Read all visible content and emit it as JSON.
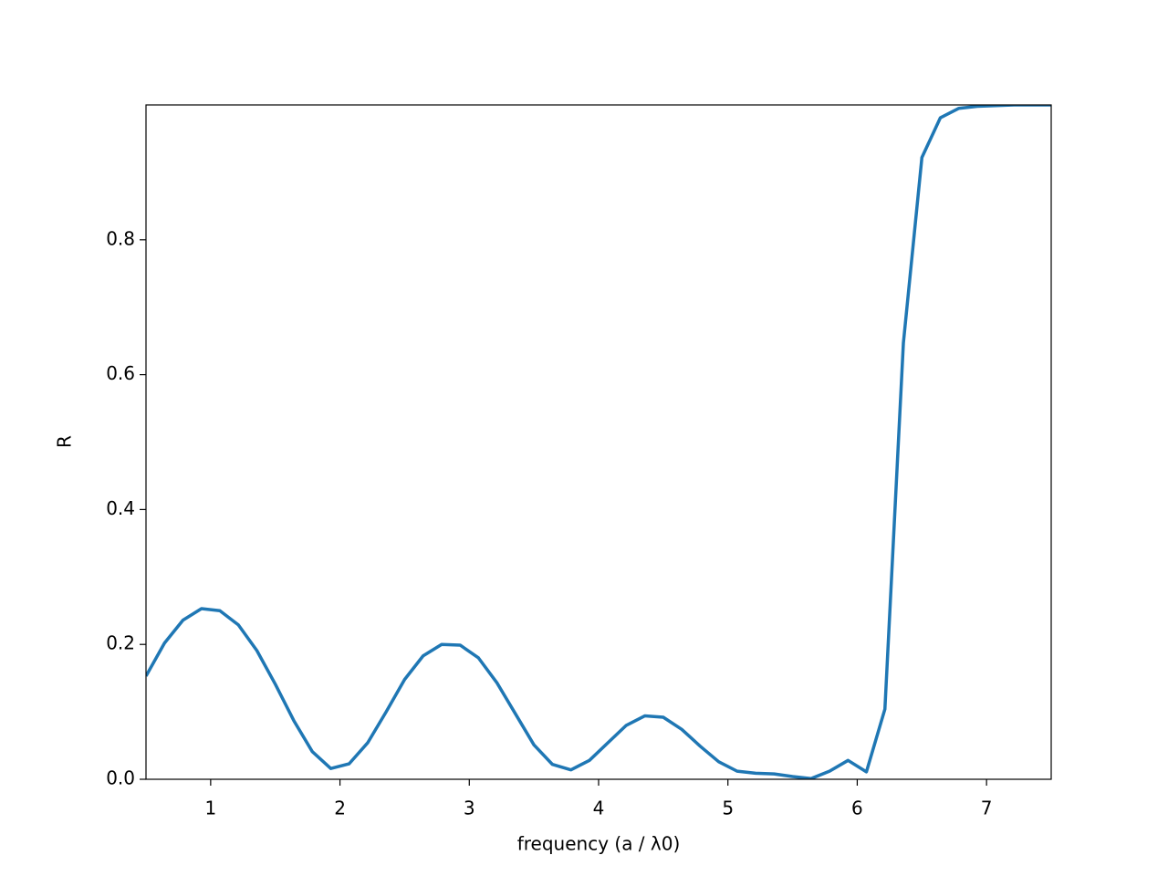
{
  "chart_data": {
    "type": "line",
    "xlabel": "frequency (a / λ0)",
    "ylabel": "R",
    "x": [
      0.5,
      0.643,
      0.786,
      0.929,
      1.071,
      1.214,
      1.357,
      1.5,
      1.643,
      1.786,
      1.929,
      2.071,
      2.214,
      2.357,
      2.5,
      2.643,
      2.786,
      2.929,
      3.071,
      3.214,
      3.357,
      3.5,
      3.643,
      3.786,
      3.929,
      4.071,
      4.214,
      4.357,
      4.5,
      4.643,
      4.786,
      4.929,
      5.071,
      5.214,
      5.357,
      5.5,
      5.643,
      5.786,
      5.929,
      6.071,
      6.214,
      6.357,
      6.5,
      6.643,
      6.786,
      6.929,
      7.071,
      7.214,
      7.357,
      7.5
    ],
    "series": [
      {
        "color": "#1f77b4",
        "values": [
          0.153,
          0.202,
          0.236,
          0.253,
          0.25,
          0.229,
          0.191,
          0.141,
          0.087,
          0.041,
          0.016,
          0.023,
          0.054,
          0.1,
          0.148,
          0.183,
          0.2,
          0.199,
          0.18,
          0.143,
          0.097,
          0.051,
          0.022,
          0.014,
          0.028,
          0.054,
          0.08,
          0.094,
          0.092,
          0.074,
          0.049,
          0.026,
          0.012,
          0.009,
          0.008,
          0.004,
          0.001,
          0.012,
          0.028,
          0.011,
          0.104,
          0.647,
          0.922,
          0.981,
          0.995,
          0.998,
          0.999,
          1.0,
          1.0,
          1.0
        ]
      }
    ],
    "xlim": [
      0.5,
      7.5
    ],
    "xticks": [
      1,
      2,
      3,
      4,
      5,
      6,
      7
    ],
    "ylim": [
      0,
      1.0
    ],
    "yticks": [
      {
        "value": 0,
        "label": "0.0"
      },
      0.2,
      0.4,
      0.6,
      0.8
    ],
    "grid": false
  }
}
